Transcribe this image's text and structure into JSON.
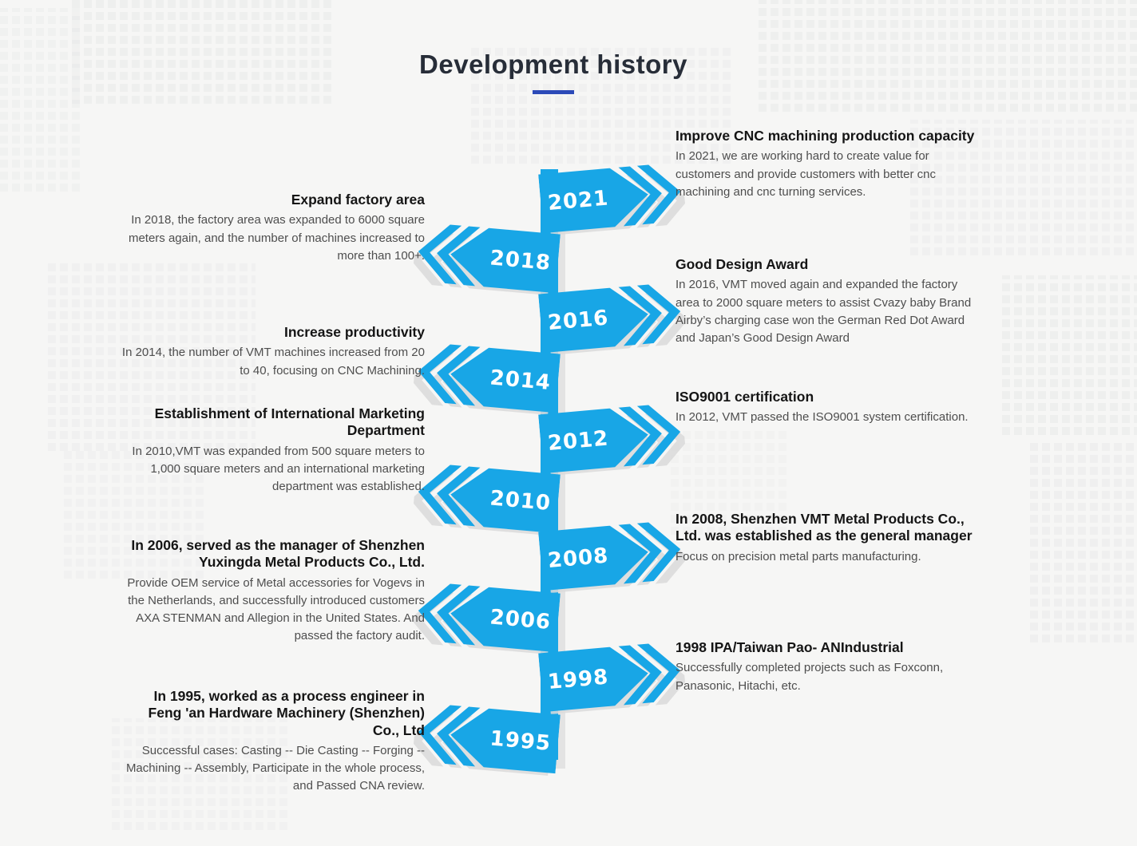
{
  "page": {
    "title": "Development history",
    "accent_color": "#2c4ab8",
    "timeline_color": "#18a6e6"
  },
  "timeline": {
    "entries": [
      {
        "year": "2021",
        "side": "right",
        "title": "Improve CNC machining production capacity",
        "body": "In 2021, we are working hard to create value for customers and provide customers with better cnc machining and cnc turning services."
      },
      {
        "year": "2018",
        "side": "left",
        "title": "Expand factory area",
        "body": "In 2018, the factory area was expanded to 6000 square meters again, and the number of machines increased to more than 100+."
      },
      {
        "year": "2016",
        "side": "right",
        "title": "Good Design Award",
        "body": "In 2016, VMT moved again and expanded the factory area to 2000 square meters to assist Cvazy baby Brand Airby’s charging case won the German Red Dot Award and Japan’s Good Design Award"
      },
      {
        "year": "2014",
        "side": "left",
        "title": "Increase productivity",
        "body": "In 2014, the number of VMT machines increased from 20 to 40, focusing on CNC Machining."
      },
      {
        "year": "2012",
        "side": "right",
        "title": "ISO9001 certification",
        "body": "In 2012, VMT passed the ISO9001 system certification."
      },
      {
        "year": "2010",
        "side": "left",
        "title": "Establishment of International Marketing Department",
        "body": "In 2010,VMT was expanded from 500 square meters to 1,000 square meters and an international marketing department was established."
      },
      {
        "year": "2008",
        "side": "right",
        "title": "In 2008, Shenzhen VMT Metal Products Co., Ltd. was established as the general manager",
        "body": "Focus on precision metal parts manufacturing."
      },
      {
        "year": "2006",
        "side": "left",
        "title": "In 2006, served as the manager of Shenzhen Yuxingda Metal Products Co., Ltd.",
        "body": "Provide OEM service of Metal accessories for Vogevs in the Netherlands, and successfully introduced customers AXA STENMAN and Allegion in the United States. And passed the factory audit."
      },
      {
        "year": "1998",
        "side": "right",
        "title": "1998 IPA/Taiwan Pao- ANIndustrial",
        "body": "Successfully completed projects such as Foxconn, Panasonic, Hitachi, etc."
      },
      {
        "year": "1995",
        "side": "left",
        "title": "In 1995, worked as a process engineer in Feng 'an Hardware Machinery (Shenzhen) Co., Ltd",
        "body": "Successful cases: Casting -- Die Casting -- Forging -- Machining -- Assembly, Participate in the whole process, and Passed CNA review."
      }
    ]
  }
}
